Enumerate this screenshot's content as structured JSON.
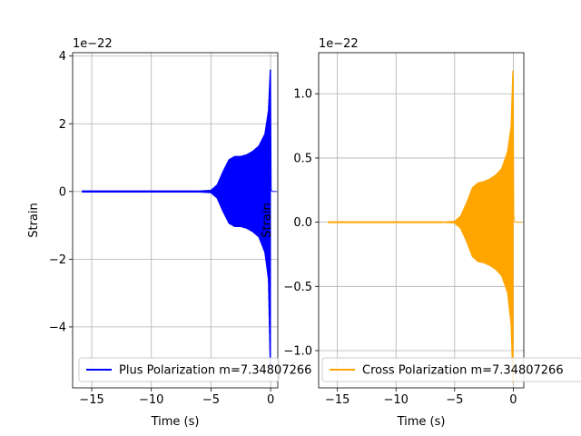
{
  "chart_data": [
    {
      "type": "line",
      "subplot": "left",
      "xlabel": "Time (s)",
      "ylabel": "Strain",
      "offset_text": "1e−22",
      "xlim": [
        -16.6,
        0.6
      ],
      "ylim": [
        -5.8,
        4.1
      ],
      "x_ticks": [
        -15,
        -10,
        -5,
        0
      ],
      "x_tick_labels": [
        "−15",
        "−10",
        "−5",
        "0"
      ],
      "y_ticks": [
        -4,
        -2,
        0,
        2,
        4
      ],
      "y_tick_labels": [
        "−4",
        "−2",
        "0",
        "2",
        "4"
      ],
      "grid": true,
      "legend_position": "lower-left",
      "series": [
        {
          "name": "Plus Polarization m=7.34807266",
          "color": "#0000ff",
          "t_start": -15.8,
          "t_merger": 0.0,
          "envelope": {
            "t": [
              -15.8,
              -10,
              -6,
              -5,
              -4.5,
              -4,
              -3.5,
              -3.0,
              -2.5,
              -2,
              -1.5,
              -1,
              -0.5,
              -0.2,
              -0.05,
              0.0
            ],
            "upper": [
              0.03,
              0.03,
              0.03,
              0.05,
              0.2,
              0.6,
              0.95,
              1.05,
              1.05,
              1.1,
              1.2,
              1.35,
              1.7,
              2.4,
              3.6,
              3.6
            ],
            "lower": [
              -0.03,
              -0.03,
              -0.03,
              -0.05,
              -0.2,
              -0.6,
              -0.95,
              -1.05,
              -1.05,
              -1.1,
              -1.2,
              -1.35,
              -1.8,
              -2.6,
              -5.2,
              -5.2
            ]
          }
        }
      ]
    },
    {
      "type": "line",
      "subplot": "right",
      "xlabel": "Time (s)",
      "ylabel": "Strain",
      "offset_text": "1e−22",
      "xlim": [
        -16.6,
        0.9
      ],
      "ylim": [
        -1.29,
        1.32
      ],
      "x_ticks": [
        -15,
        -10,
        -5,
        0
      ],
      "x_tick_labels": [
        "−15",
        "−10",
        "−5",
        "0"
      ],
      "y_ticks": [
        -1.0,
        -0.5,
        0.0,
        0.5,
        1.0
      ],
      "y_tick_labels": [
        "−1.0",
        "−0.5",
        "0.0",
        "0.5",
        "1.0"
      ],
      "grid": true,
      "legend_position": "lower-left",
      "series": [
        {
          "name": "Cross Polarization m=7.34807266",
          "color": "#ffa500",
          "t_start": -15.8,
          "t_merger": 0.0,
          "envelope": {
            "t": [
              -15.8,
              -10,
              -6,
              -5,
              -4.5,
              -4,
              -3.5,
              -3.0,
              -2.5,
              -2,
              -1.5,
              -1,
              -0.5,
              -0.2,
              -0.05,
              0.0
            ],
            "upper": [
              0.005,
              0.005,
              0.005,
              0.01,
              0.05,
              0.15,
              0.27,
              0.31,
              0.32,
              0.34,
              0.37,
              0.42,
              0.55,
              0.75,
              1.18,
              1.18
            ],
            "lower": [
              -0.005,
              -0.005,
              -0.005,
              -0.01,
              -0.05,
              -0.15,
              -0.27,
              -0.31,
              -0.32,
              -0.34,
              -0.37,
              -0.42,
              -0.55,
              -0.8,
              -1.25,
              -1.25
            ]
          }
        }
      ]
    }
  ]
}
